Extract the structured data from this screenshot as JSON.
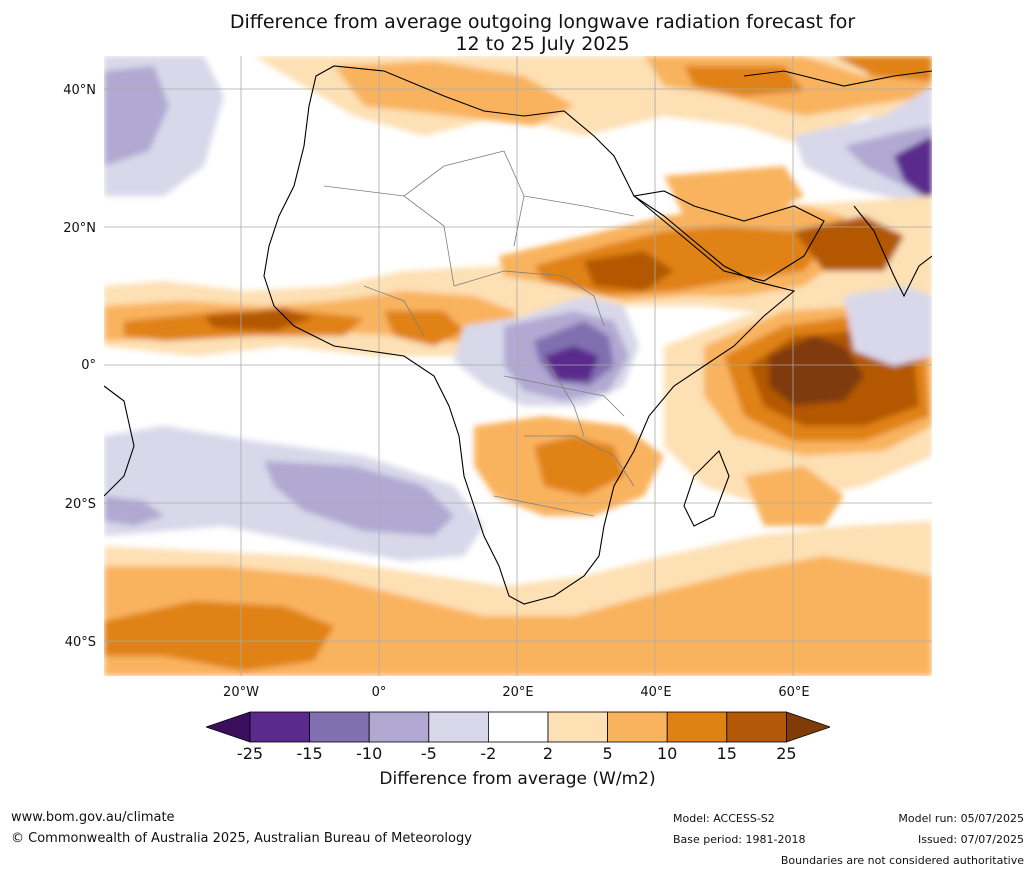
{
  "title": {
    "line1": "Difference from average outgoing longwave radiation forecast for",
    "line2": "12 to 25 July 2025"
  },
  "axes": {
    "lat_labels": [
      "40°N",
      "20°N",
      "0°",
      "20°S",
      "40°S"
    ],
    "lon_labels": [
      "20°W",
      "0°",
      "20°E",
      "40°E",
      "60°E"
    ]
  },
  "colorbar": {
    "ticks": [
      "-25",
      "-15",
      "-10",
      "-5",
      "-2",
      "2",
      "5",
      "10",
      "15",
      "25"
    ],
    "colors": [
      "#3b0f5e",
      "#5a2a8c",
      "#8170b0",
      "#b1a9d2",
      "#d8d8ea",
      "#ffffff",
      "#fde0b4",
      "#f9b35f",
      "#e08213",
      "#b35806",
      "#7f3b08"
    ],
    "label": "Difference from average (W/m2)"
  },
  "footer": {
    "url": "www.bom.gov.au/climate",
    "copyright": "© Commonwealth of Australia 2025, Australian Bureau of Meteorology",
    "model": "Model: ACCESS-S2",
    "base_period": "Base period: 1981-2018",
    "model_run": "Model run: 05/07/2025",
    "issued": "Issued: 07/07/2025",
    "disclaimer": "Boundaries are not considered authoritative"
  }
}
